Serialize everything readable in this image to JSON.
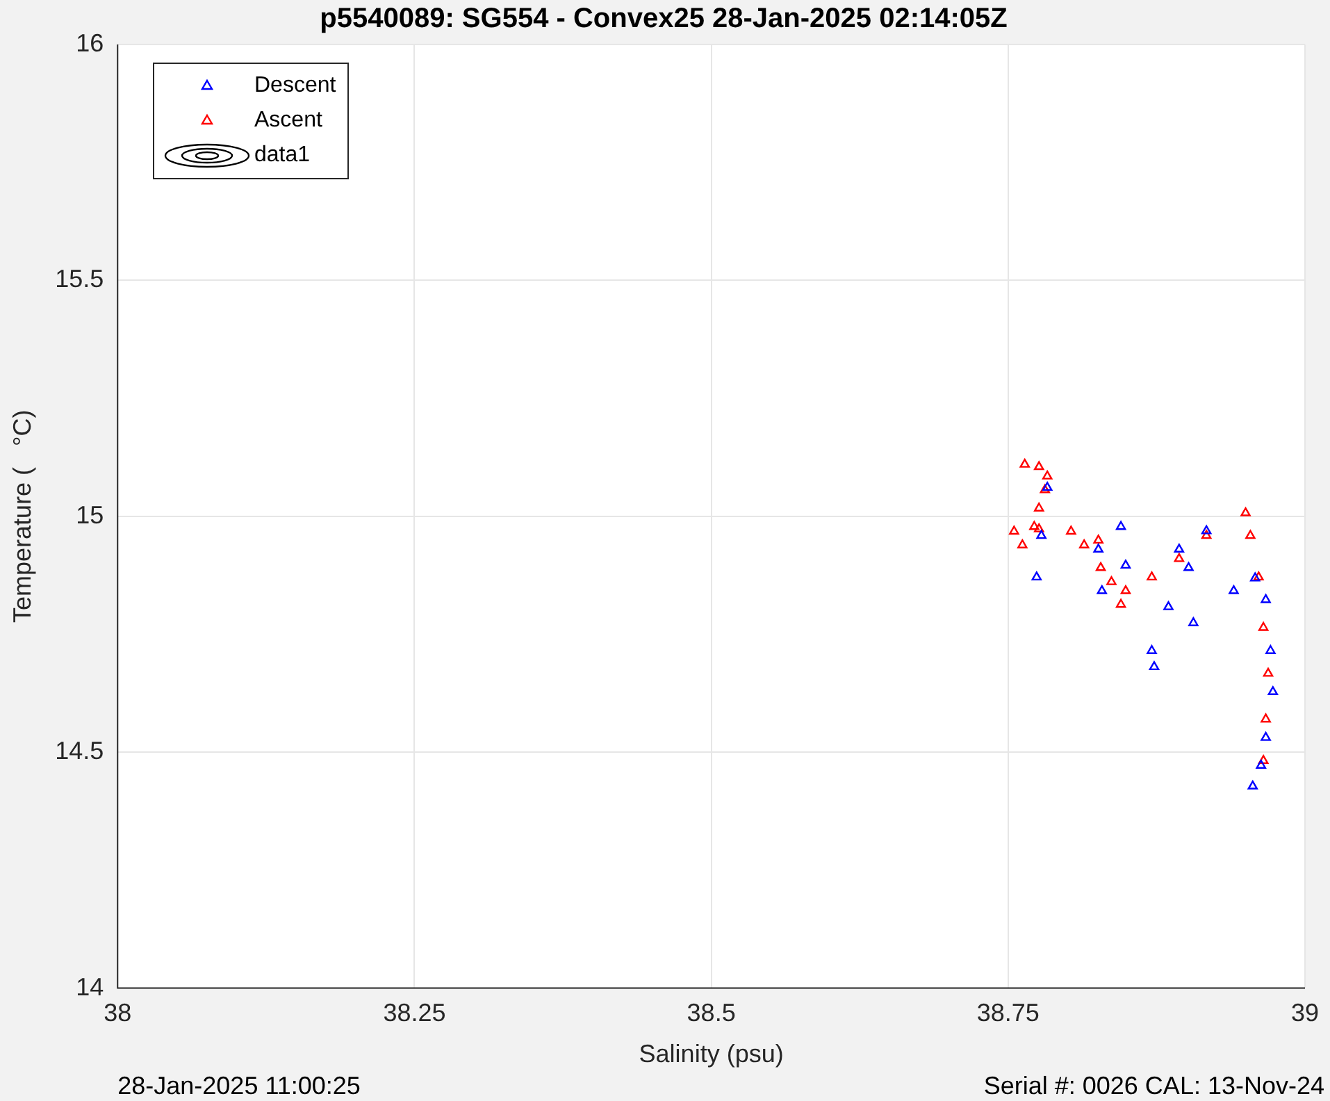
{
  "chart_data": {
    "type": "scatter",
    "title": "p5540089: SG554 - Convex25 28-Jan-2025 02:14:05Z",
    "xlabel": "Salinity (psu)",
    "ylabel": "Temperature (   °C)",
    "annotations": [
      "28-Jan-2025 11:00:25",
      "Serial #: 0026 CAL: 13-Nov-24"
    ],
    "xlim": [
      38,
      39
    ],
    "xticks": [
      38,
      38.25,
      38.5,
      38.75,
      39
    ],
    "ylim": [
      14,
      16
    ],
    "yticks": [
      14,
      14.5,
      15,
      15.5,
      16
    ],
    "grid": true,
    "legend": "top left",
    "marker": "triangle",
    "series": [
      {
        "name": "Descent",
        "color": "#0000ff",
        "x": [
          38.783,
          38.778,
          38.774,
          38.826,
          38.845,
          38.829,
          38.849,
          38.894,
          38.917,
          38.902,
          38.885,
          38.871,
          38.873,
          38.906,
          38.94,
          38.958,
          38.967,
          38.971,
          38.973,
          38.967,
          38.963,
          38.956
        ],
        "values": [
          15.061,
          14.959,
          14.871,
          14.93,
          14.978,
          14.842,
          14.896,
          14.93,
          14.969,
          14.891,
          14.808,
          14.715,
          14.681,
          14.774,
          14.842,
          14.869,
          14.823,
          14.715,
          14.628,
          14.531,
          14.472,
          14.428
        ]
      },
      {
        "name": "Ascent",
        "color": "#ff0000",
        "x": [
          38.965,
          38.967,
          38.969,
          38.965,
          38.961,
          38.954,
          38.95,
          38.917,
          38.894,
          38.871,
          38.845,
          38.849,
          38.837,
          38.828,
          38.826,
          38.814,
          38.803,
          38.776,
          38.762,
          38.755,
          38.772,
          38.776,
          38.781,
          38.783,
          38.776,
          38.764
        ],
        "values": [
          14.482,
          14.57,
          14.667,
          14.764,
          14.871,
          14.959,
          15.007,
          14.959,
          14.91,
          14.871,
          14.813,
          14.842,
          14.861,
          14.891,
          14.949,
          14.939,
          14.968,
          14.973,
          14.939,
          14.968,
          14.978,
          15.017,
          15.056,
          15.085,
          15.105,
          15.11
        ]
      },
      {
        "name": "data1",
        "color": "#000000",
        "marker": "circle"
      }
    ]
  }
}
